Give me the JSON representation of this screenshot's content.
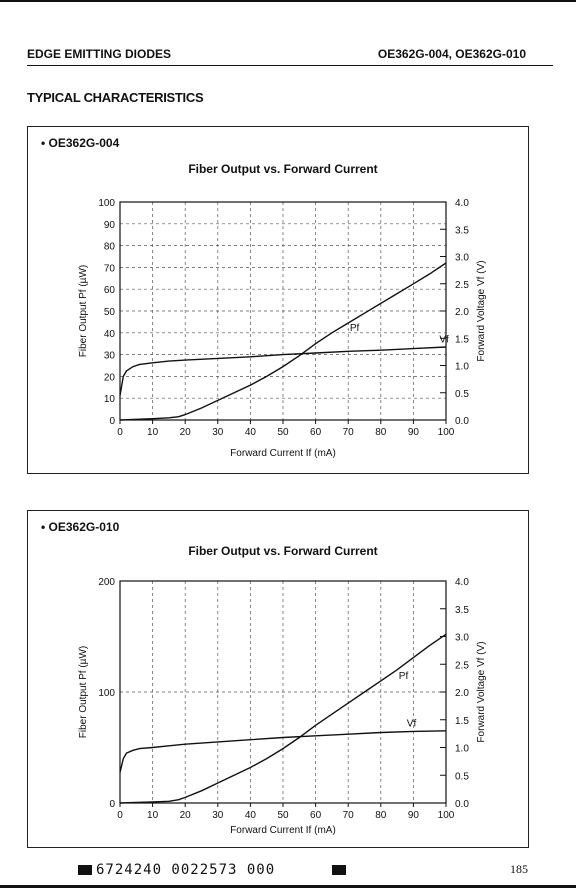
{
  "header": {
    "left": "EDGE EMITTING DIODES",
    "right": "OE362G-004, OE362G-010"
  },
  "section_title": "TYPICAL CHARACTERISTICS",
  "footer": {
    "code": "6724240 0022573 000",
    "page_number": "185"
  },
  "chart_data": [
    {
      "type": "line",
      "panel_label": "• OE362G-004",
      "title": "Fiber Output vs. Forward Current",
      "xlabel": "Forward Current If (mA)",
      "ylabel": "Fiber Output Pf (µW)",
      "y2label": "Forward Voltage Vf (V)",
      "xlim": [
        0,
        100
      ],
      "ylim": [
        0,
        100
      ],
      "y2lim": [
        0,
        4.0
      ],
      "xticks": [
        "0",
        "10",
        "20",
        "30",
        "40",
        "50",
        "60",
        "70",
        "80",
        "90",
        "100"
      ],
      "yticks": [
        "0",
        "10",
        "20",
        "30",
        "40",
        "50",
        "60",
        "70",
        "80",
        "90",
        "100"
      ],
      "y2ticks": [
        "0.0",
        "0.5",
        "1.0",
        "1.5",
        "2.0",
        "2.5",
        "3.0",
        "3.5",
        "4.0"
      ],
      "grid": true,
      "series": [
        {
          "name": "Pf",
          "axis": "left",
          "x": [
            0,
            5,
            10,
            15,
            18,
            20,
            25,
            30,
            35,
            40,
            45,
            50,
            55,
            60,
            65,
            70,
            75,
            80,
            85,
            90,
            95,
            100
          ],
          "y": [
            0,
            0.3,
            0.6,
            1.0,
            1.5,
            2.5,
            5.5,
            9,
            12.5,
            16,
            20,
            24.5,
            29.5,
            35,
            40,
            44.5,
            49,
            53.5,
            58,
            62.5,
            67,
            72
          ]
        },
        {
          "name": "Vf",
          "axis": "right",
          "x": [
            0,
            1,
            2,
            4,
            6,
            10,
            15,
            20,
            30,
            40,
            50,
            60,
            70,
            80,
            90,
            100
          ],
          "y": [
            0.45,
            0.8,
            0.9,
            0.98,
            1.02,
            1.05,
            1.08,
            1.1,
            1.13,
            1.16,
            1.2,
            1.23,
            1.26,
            1.28,
            1.31,
            1.34
          ]
        }
      ]
    },
    {
      "type": "line",
      "panel_label": "• OE362G-010",
      "title": "Fiber Output vs. Forward Current",
      "xlabel": "Forward Current If (mA)",
      "ylabel": "Fiber Output Pf (µW)",
      "y2label": "Forward Voltage Vf (V)",
      "xlim": [
        0,
        100
      ],
      "ylim": [
        0,
        200
      ],
      "y2lim": [
        0,
        4.0
      ],
      "xticks": [
        "0",
        "10",
        "20",
        "30",
        "40",
        "50",
        "60",
        "70",
        "80",
        "90",
        "100"
      ],
      "yticks": [
        "0",
        "100",
        "200"
      ],
      "y2ticks": [
        "0.0",
        "0.5",
        "1.0",
        "1.5",
        "2.0",
        "2.5",
        "3.0",
        "3.5",
        "4.0"
      ],
      "grid": true,
      "series": [
        {
          "name": "Pf",
          "axis": "left",
          "x": [
            0,
            5,
            10,
            15,
            18,
            20,
            25,
            30,
            35,
            40,
            45,
            50,
            55,
            60,
            65,
            70,
            75,
            80,
            85,
            90,
            95,
            100
          ],
          "y": [
            0,
            0.5,
            1,
            1.5,
            3,
            5,
            11,
            18,
            25,
            32,
            40,
            49,
            59,
            70,
            80,
            90,
            100,
            110,
            120,
            131,
            142,
            152
          ]
        },
        {
          "name": "Vf",
          "axis": "right",
          "x": [
            0,
            1,
            2,
            4,
            6,
            10,
            15,
            20,
            30,
            40,
            50,
            60,
            70,
            80,
            90,
            100
          ],
          "y": [
            0.55,
            0.8,
            0.9,
            0.95,
            0.98,
            1.0,
            1.03,
            1.06,
            1.1,
            1.14,
            1.18,
            1.21,
            1.24,
            1.27,
            1.29,
            1.3
          ]
        }
      ]
    }
  ]
}
